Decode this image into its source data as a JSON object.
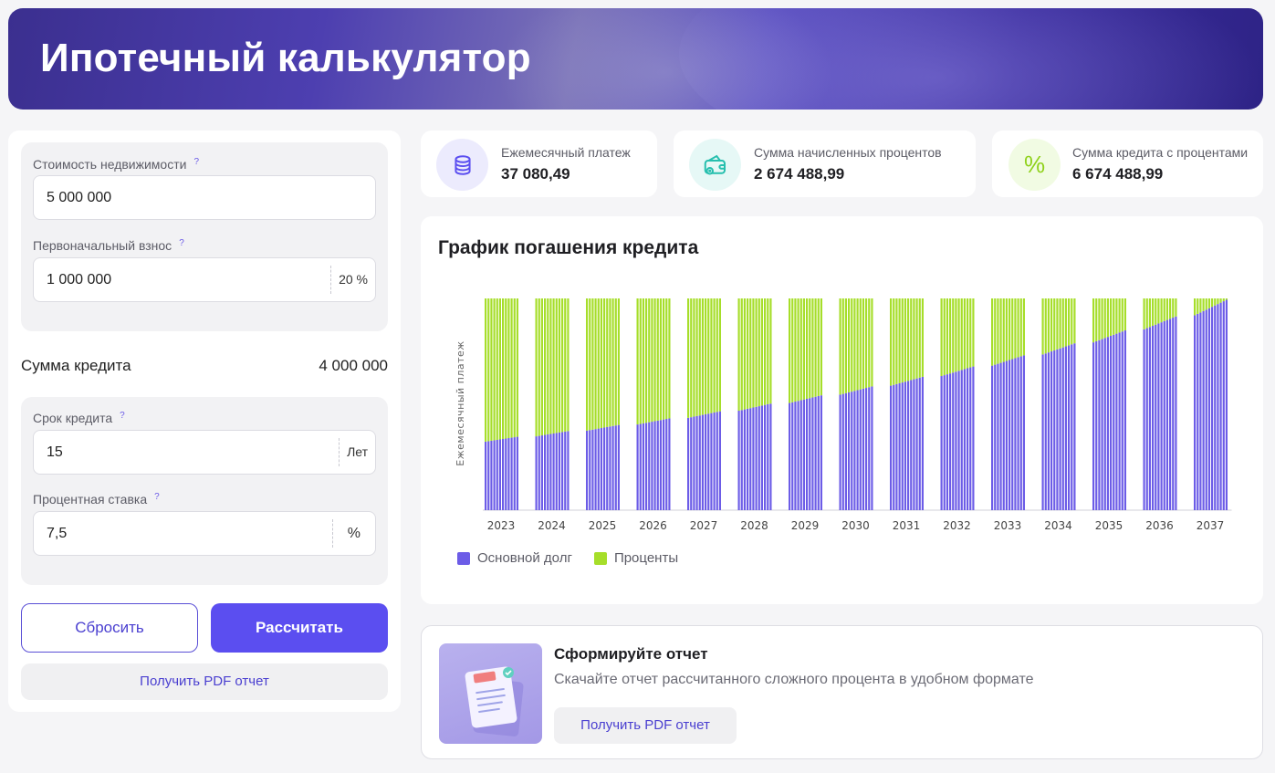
{
  "header": {
    "title": "Ипотечный калькулятор"
  },
  "form": {
    "property_cost": {
      "label": "Стоимость недвижимости",
      "hint": "?",
      "value": "5 000 000"
    },
    "down_payment": {
      "label": "Первоначальный взнос",
      "hint": "?",
      "value": "1 000 000",
      "suffix": "20 %"
    },
    "loan_amount": {
      "label": "Сумма кредита",
      "value": "4 000 000"
    },
    "term": {
      "label": "Срок кредита",
      "hint": "?",
      "value": "15",
      "suffix": "Лет"
    },
    "rate": {
      "label": "Процентная ставка",
      "hint": "?",
      "value": "7,5",
      "suffix": "%"
    },
    "reset_label": "Сбросить",
    "calculate_label": "Рассчитать",
    "pdf_label": "Получить PDF отчет"
  },
  "stats": [
    {
      "label": "Ежемесячный платеж",
      "value": "37 080,49",
      "icon": "coins-icon",
      "color": "#ecebfd",
      "icon_color": "#5b4ef0"
    },
    {
      "label": "Сумма начисленных процентов",
      "value": "2 674 488,99",
      "icon": "wallet-icon",
      "color": "#e6f8f6",
      "icon_color": "#26bfae"
    },
    {
      "label": "Сумма кредита с процентами",
      "value": "6 674 488,99",
      "icon": "percent-icon",
      "color": "#f1fbe3",
      "icon_color": "#8fd11a"
    }
  ],
  "chart": {
    "title": "График погашения кредита"
  },
  "chart_data": {
    "type": "bar",
    "stacked": true,
    "ylabel": "Ежемесячный платеж",
    "categories": [
      "2023",
      "2024",
      "2025",
      "2026",
      "2027",
      "2028",
      "2029",
      "2030",
      "2031",
      "2032",
      "2033",
      "2034",
      "2035",
      "2036",
      "2037"
    ],
    "bars_per_category": 12,
    "monthly_payment": 37080.49,
    "series": [
      {
        "name": "Основной долг",
        "color": "#6c5ce7",
        "values": [
          12000,
          12930,
          13930,
          15010,
          16170,
          17420,
          18770,
          20230,
          21800,
          23490,
          25310,
          27270,
          29390,
          31670,
          34130
        ]
      },
      {
        "name": "Проценты",
        "color": "#a6de2a",
        "values": [
          25080,
          24150,
          23150,
          22070,
          20910,
          19660,
          18310,
          16850,
          15280,
          13590,
          11770,
          9810,
          7690,
          5410,
          2950
        ]
      }
    ],
    "ylim": [
      0,
      37080.49
    ],
    "legend": "bottom-left"
  },
  "report": {
    "title": "Сформируйте отчет",
    "description": "Скачайте отчет рассчитанного сложного процента в удобном формате",
    "button_label": "Получить PDF отчет"
  }
}
